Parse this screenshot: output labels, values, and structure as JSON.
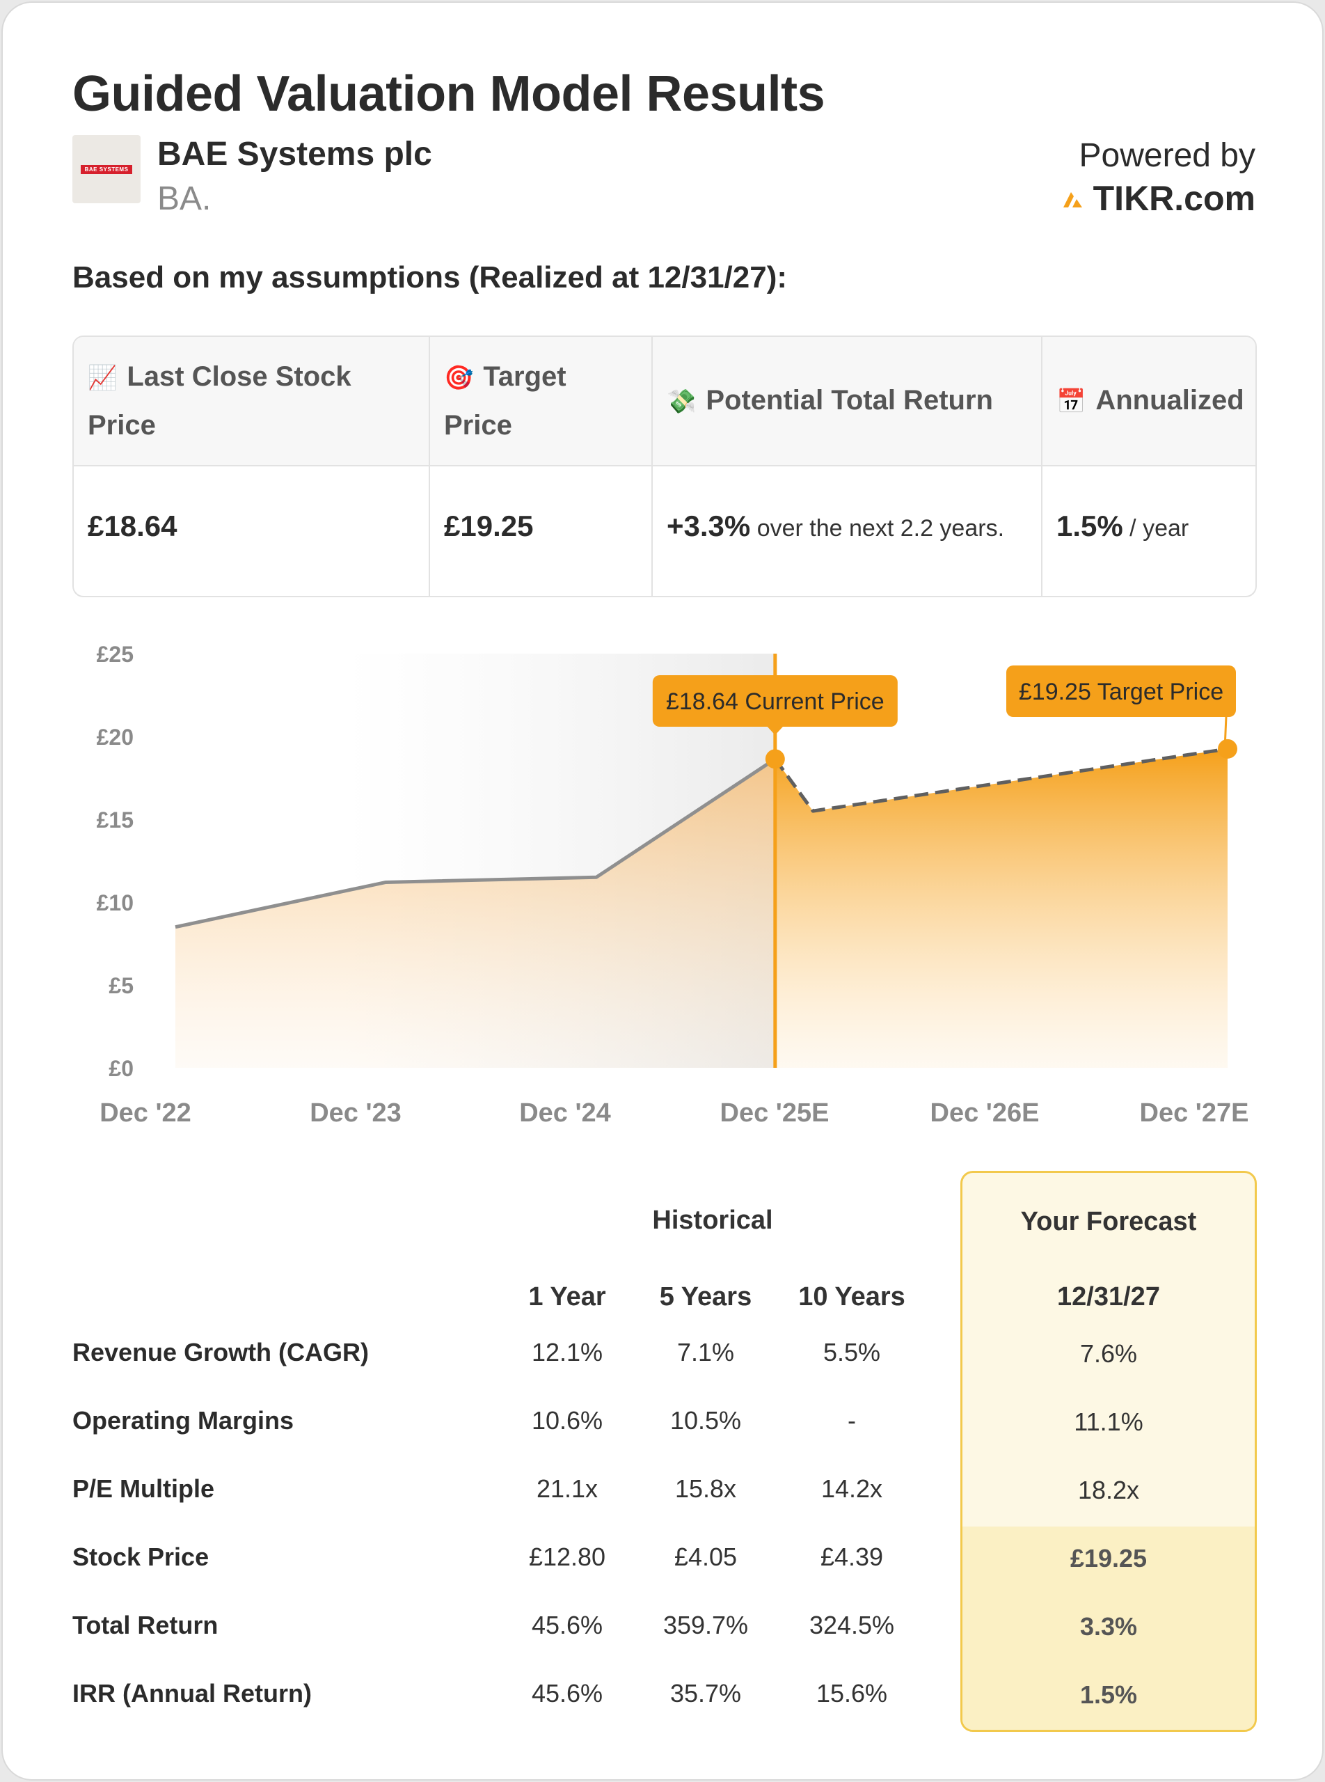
{
  "title": "Guided Valuation Model Results",
  "company": {
    "name": "BAE Systems plc",
    "ticker": "BA.",
    "logo_text": "BAE SYSTEMS"
  },
  "powered_by": {
    "label": "Powered by",
    "brand": "TIKR.com",
    "brand_color": "#f5a01a"
  },
  "assumptions_heading": "Based on my assumptions (Realized at 12/31/27):",
  "stats": [
    {
      "icon": "📈",
      "icon_name": "chart-increasing-icon",
      "label": "Last Close Stock Price",
      "value": "£18.64",
      "suffix": ""
    },
    {
      "icon": "🎯",
      "icon_name": "target-icon",
      "label": "Target Price",
      "value": "£19.25",
      "suffix": ""
    },
    {
      "icon": "💸",
      "icon_name": "money-wings-icon",
      "label": "Potential Total Return",
      "value": "+3.3%",
      "suffix": " over the next 2.2 years."
    },
    {
      "icon": "📅",
      "icon_name": "calendar-icon",
      "label": "Annualized",
      "value": "1.5%",
      "suffix": " / year"
    }
  ],
  "chart_data": {
    "type": "area",
    "categories": [
      "Dec '22",
      "Dec '23",
      "Dec '24",
      "Dec '25E",
      "Dec '26E",
      "Dec '27E"
    ],
    "yticks": [
      "£0",
      "£5",
      "£10",
      "£15",
      "£20",
      "£25"
    ],
    "ylim": [
      0,
      25
    ],
    "historical": [
      {
        "x": 0,
        "y": 8.5
      },
      {
        "x": 1,
        "y": 11.2
      },
      {
        "x": 2,
        "y": 11.5
      },
      {
        "x": 2.85,
        "y": 18.64
      }
    ],
    "forecast": [
      {
        "x": 2.85,
        "y": 18.64
      },
      {
        "x": 3.03,
        "y": 15.5
      },
      {
        "x": 5.0,
        "y": 19.25
      }
    ],
    "annotations": [
      {
        "text": "£18.64 Current Price",
        "x": 2.85,
        "y": 18.64
      },
      {
        "text": "£19.25 Target Price",
        "x": 5.0,
        "y": 19.25
      }
    ],
    "colors": {
      "accent": "#f5a01a",
      "line": "#8f8f8f",
      "historical_fill": "#f9c98a"
    }
  },
  "table": {
    "historical_label": "Historical",
    "forecast_label": "Your Forecast",
    "columns": [
      "1 Year",
      "5 Years",
      "10 Years"
    ],
    "forecast_date": "12/31/27",
    "rows": [
      {
        "label": "Revenue Growth (CAGR)",
        "values": [
          "12.1%",
          "7.1%",
          "5.5%"
        ],
        "forecast": "7.6%"
      },
      {
        "label": "Operating Margins",
        "values": [
          "10.6%",
          "10.5%",
          "-"
        ],
        "forecast": "11.1%"
      },
      {
        "label": "P/E Multiple",
        "values": [
          "21.1x",
          "15.8x",
          "14.2x"
        ],
        "forecast": "18.2x"
      },
      {
        "label": "Stock Price",
        "values": [
          "£12.80",
          "£4.05",
          "£4.39"
        ],
        "forecast": "£19.25"
      },
      {
        "label": "Total Return",
        "values": [
          "45.6%",
          "359.7%",
          "324.5%"
        ],
        "forecast": "3.3%"
      },
      {
        "label": "IRR (Annual Return)",
        "values": [
          "45.6%",
          "35.7%",
          "15.6%"
        ],
        "forecast": "1.5%"
      }
    ]
  }
}
